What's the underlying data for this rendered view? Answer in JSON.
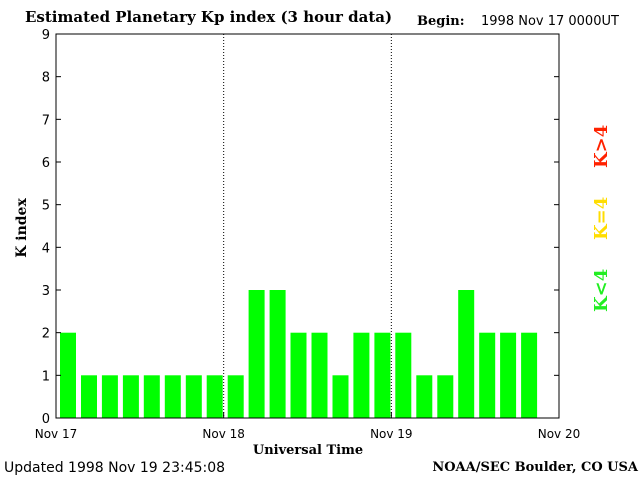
{
  "title": "Estimated Planetary Kp index (3 hour data)",
  "begin_label": "Begin:",
  "begin_value": "1998 Nov 17 0000UT",
  "updated_label": "Updated",
  "updated_value": "1998 Nov 19 23:45:08",
  "credit": "NOAA/SEC Boulder, CO USA",
  "legend": {
    "high": {
      "text": "K>4",
      "color": "#ff2200"
    },
    "mid": {
      "text": "K=4",
      "color": "#ffdd00"
    },
    "low": {
      "text": "K<4",
      "color": "#22ee22"
    }
  },
  "chart_data": {
    "type": "bar",
    "title": "Estimated Planetary Kp index (3 hour data)",
    "xlabel": "Universal Time",
    "ylabel": "K index",
    "ylim": [
      0,
      9
    ],
    "yticks": [
      0,
      1,
      2,
      3,
      4,
      5,
      6,
      7,
      8,
      9
    ],
    "x_range_days": 3,
    "day_labels": [
      "Nov 17",
      "Nov 18",
      "Nov 19",
      "Nov 20"
    ],
    "day_dividers": true,
    "bar_color": "#00ff00",
    "values": [
      2,
      1,
      1,
      1,
      1,
      1,
      1,
      1,
      1,
      3,
      3,
      2,
      2,
      1,
      2,
      2,
      2,
      1,
      1,
      3,
      2,
      2,
      2
    ]
  }
}
